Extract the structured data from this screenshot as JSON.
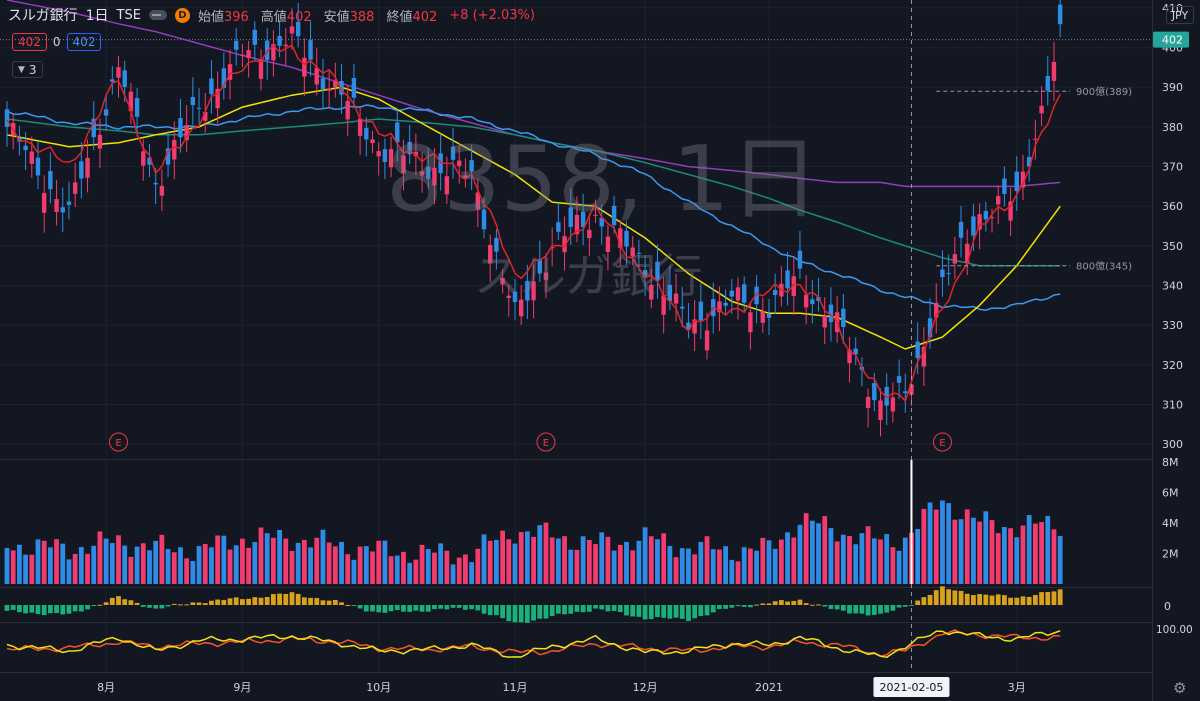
{
  "header": {
    "symbol": "スルガ銀行",
    "timeframe": "1日",
    "exchange": "TSE",
    "interval_badge": "D",
    "open_label": "始値",
    "open_value": "396",
    "high_label": "高値",
    "high_value": "402",
    "low_label": "安値",
    "low_value": "388",
    "close_label": "終値",
    "close_value": "402",
    "change": "+8 (+2.03%)"
  },
  "indicator_row": {
    "price_a": "402",
    "mid": "0",
    "price_b": "402"
  },
  "ma_selector": {
    "value": "3"
  },
  "watermark": {
    "main": "8358, 1日",
    "sub": "スルガ銀行"
  },
  "currency": "JPY",
  "colors": {
    "background": "#131722",
    "up": "#f23b6e",
    "down": "#2f8ce6",
    "ma_red": "#e0242a",
    "ma_yellow": "#f2e400",
    "ma_blue": "#3a9af0",
    "ma_teal": "#1a8a7a",
    "ma_purple": "#8e3fb5",
    "osc_pos": "#d9a21b",
    "osc_neg": "#19b07a",
    "stoch_k": "#f0e11b",
    "stoch_d": "#f5552a"
  },
  "icons": {
    "settings": "gear-icon",
    "earnings": "earnings-marker-icon"
  },
  "chart_data": {
    "type": "candlestick",
    "price_axis": {
      "ticks": [
        410,
        400,
        390,
        380,
        370,
        360,
        350,
        340,
        330,
        320,
        310,
        300
      ],
      "range": [
        296,
        412
      ]
    },
    "volume_axis": {
      "ticks": [
        "8M",
        "6M",
        "4M",
        "2M"
      ],
      "tick_values": [
        8,
        6,
        4,
        2
      ],
      "unit": "M",
      "range": [
        0,
        8
      ]
    },
    "oscillator_axis": {
      "ticks": [
        "0"
      ]
    },
    "stochastic_axis": {
      "ticks": [
        "100.00"
      ]
    },
    "x_labels": [
      {
        "label": "8月",
        "bar": 16
      },
      {
        "label": "9月",
        "bar": 38
      },
      {
        "label": "10月",
        "bar": 60
      },
      {
        "label": "11月",
        "bar": 82
      },
      {
        "label": "12月",
        "bar": 103
      },
      {
        "label": "2021",
        "bar": 123
      },
      {
        "label": "3月",
        "bar": 163
      }
    ],
    "crosshair": {
      "bar": 146,
      "date_label": "2021-02-05"
    },
    "last_price": 402,
    "price_lines": [
      {
        "label": "900億(389)",
        "value": 389,
        "from_bar": 150
      },
      {
        "label": "800億(345)",
        "value": 345,
        "from_bar": 150
      }
    ],
    "earnings_markers": [
      {
        "bar": 18,
        "label": "E"
      },
      {
        "bar": 87,
        "label": "E"
      },
      {
        "bar": 151,
        "label": "E"
      }
    ],
    "anchors": [
      {
        "bar": 0,
        "close": 380,
        "ma5": 380,
        "ma25": 378,
        "ma75": 384,
        "ma100": 382,
        "ma200": 412,
        "vol": 2.6,
        "osc": -1.0,
        "k": 50,
        "d": 35
      },
      {
        "bar": 10,
        "close": 358,
        "ma5": 370,
        "ma25": 375,
        "ma75": 381,
        "ma100": 380,
        "ma200": 409,
        "vol": 2.3,
        "osc": -1.5,
        "k": 30,
        "d": 40
      },
      {
        "bar": 18,
        "close": 395,
        "ma5": 392,
        "ma25": 376,
        "ma75": 380,
        "ma100": 379,
        "ma200": 406,
        "vol": 2.8,
        "osc": 1.2,
        "k": 75,
        "d": 60
      },
      {
        "bar": 24,
        "close": 366,
        "ma5": 368,
        "ma25": 378,
        "ma75": 380,
        "ma100": 378,
        "ma200": 404,
        "vol": 2.4,
        "osc": -0.6,
        "k": 30,
        "d": 45
      },
      {
        "bar": 31,
        "close": 385,
        "ma5": 382,
        "ma25": 380,
        "ma75": 380,
        "ma100": 378,
        "ma200": 401,
        "vol": 2.2,
        "osc": 0.5,
        "k": 65,
        "d": 55
      },
      {
        "bar": 38,
        "close": 398,
        "ma5": 396,
        "ma25": 385,
        "ma75": 382,
        "ma100": 379,
        "ma200": 398,
        "vol": 3.0,
        "osc": 1.0,
        "k": 70,
        "d": 60
      },
      {
        "bar": 46,
        "close": 402,
        "ma5": 400,
        "ma25": 388,
        "ma75": 384,
        "ma100": 380,
        "ma200": 395,
        "vol": 3.0,
        "osc": 1.8,
        "k": 80,
        "d": 70
      },
      {
        "bar": 54,
        "close": 388,
        "ma5": 390,
        "ma25": 390,
        "ma75": 385,
        "ma100": 381,
        "ma200": 391,
        "vol": 2.5,
        "osc": 0.3,
        "k": 55,
        "d": 60
      },
      {
        "bar": 60,
        "close": 375,
        "ma5": 378,
        "ma25": 387,
        "ma75": 385,
        "ma100": 382,
        "ma200": 388,
        "vol": 2.2,
        "osc": -1.2,
        "k": 30,
        "d": 40
      },
      {
        "bar": 68,
        "close": 370,
        "ma5": 372,
        "ma25": 380,
        "ma75": 384,
        "ma100": 381,
        "ma200": 384,
        "vol": 2.0,
        "osc": -0.8,
        "k": 35,
        "d": 35
      },
      {
        "bar": 75,
        "close": 368,
        "ma5": 368,
        "ma25": 374,
        "ma75": 382,
        "ma100": 380,
        "ma200": 381,
        "vol": 2.0,
        "osc": -0.5,
        "k": 50,
        "d": 45
      },
      {
        "bar": 82,
        "close": 332,
        "ma5": 343,
        "ma25": 368,
        "ma75": 379,
        "ma100": 378,
        "ma200": 378,
        "vol": 3.5,
        "osc": -2.8,
        "k": 10,
        "d": 25
      },
      {
        "bar": 88,
        "close": 350,
        "ma5": 348,
        "ma25": 361,
        "ma75": 376,
        "ma100": 376,
        "ma200": 376,
        "vol": 3.2,
        "osc": -1.8,
        "k": 45,
        "d": 30
      },
      {
        "bar": 95,
        "close": 358,
        "ma5": 359,
        "ma25": 360,
        "ma75": 373,
        "ma100": 374,
        "ma200": 374,
        "vol": 2.6,
        "osc": -0.6,
        "k": 70,
        "d": 55
      },
      {
        "bar": 103,
        "close": 345,
        "ma5": 343,
        "ma25": 352,
        "ma75": 368,
        "ma100": 371,
        "ma200": 372,
        "vol": 3.0,
        "osc": -2.0,
        "k": 25,
        "d": 40
      },
      {
        "bar": 110,
        "close": 330,
        "ma5": 330,
        "ma25": 343,
        "ma75": 361,
        "ma100": 368,
        "ma200": 370,
        "vol": 2.4,
        "osc": -2.2,
        "k": 30,
        "d": 30
      },
      {
        "bar": 117,
        "close": 336,
        "ma5": 334,
        "ma25": 336,
        "ma75": 355,
        "ma100": 365,
        "ma200": 369,
        "vol": 2.2,
        "osc": -0.4,
        "k": 55,
        "d": 45
      },
      {
        "bar": 123,
        "close": 335,
        "ma5": 338,
        "ma25": 333,
        "ma75": 350,
        "ma100": 362,
        "ma200": 368,
        "vol": 2.3,
        "osc": 0.3,
        "k": 50,
        "d": 45
      },
      {
        "bar": 128,
        "close": 342,
        "ma5": 341,
        "ma25": 333,
        "ma75": 346,
        "ma100": 359,
        "ma200": 367,
        "vol": 4.2,
        "osc": 0.8,
        "k": 75,
        "d": 60
      },
      {
        "bar": 134,
        "close": 330,
        "ma5": 330,
        "ma25": 332,
        "ma75": 343,
        "ma100": 356,
        "ma200": 366,
        "vol": 3.5,
        "osc": -0.9,
        "k": 40,
        "d": 50
      },
      {
        "bar": 141,
        "close": 310,
        "ma5": 312,
        "ma25": 327,
        "ma75": 339,
        "ma100": 352,
        "ma200": 366,
        "vol": 2.8,
        "osc": -1.6,
        "k": 10,
        "d": 20
      },
      {
        "bar": 145,
        "close": 312,
        "ma5": 313,
        "ma25": 324,
        "ma75": 337,
        "ma100": 350,
        "ma200": 365,
        "vol": 3.0,
        "osc": -0.2,
        "k": 45,
        "d": 30
      },
      {
        "bar": 151,
        "close": 340,
        "ma5": 334,
        "ma25": 327,
        "ma75": 335,
        "ma100": 347,
        "ma200": 365,
        "vol": 5.5,
        "osc": 2.6,
        "k": 100,
        "d": 90
      },
      {
        "bar": 157,
        "close": 358,
        "ma5": 354,
        "ma25": 335,
        "ma75": 334,
        "ma100": 345,
        "ma200": 365,
        "vol": 4.0,
        "osc": 1.6,
        "k": 80,
        "d": 85
      },
      {
        "bar": 163,
        "close": 362,
        "ma5": 363,
        "ma25": 345,
        "ma75": 335,
        "ma100": 345,
        "ma200": 365,
        "vol": 3.8,
        "osc": 1.2,
        "k": 70,
        "d": 75
      },
      {
        "bar": 170,
        "close": 402,
        "ma5": 388,
        "ma25": 360,
        "ma75": 338,
        "ma100": 345,
        "ma200": 366,
        "vol": 3.9,
        "osc": 2.2,
        "k": 98,
        "d": 75
      }
    ],
    "series_legend": [
      "close",
      "ma5",
      "ma25",
      "ma75",
      "ma100",
      "ma200",
      "vol",
      "osc",
      "k",
      "d"
    ]
  }
}
